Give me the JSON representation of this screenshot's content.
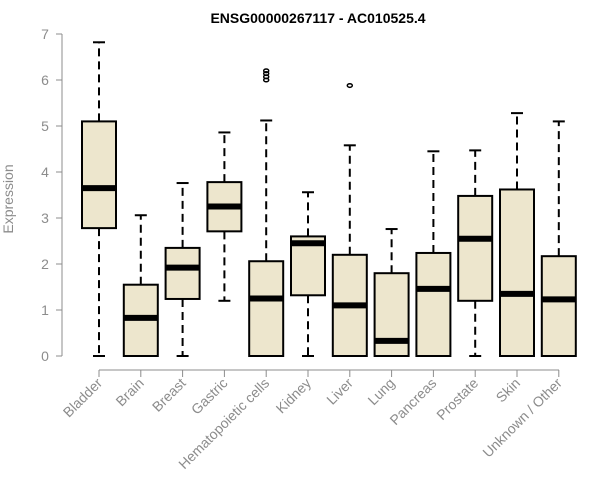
{
  "chart_data": {
    "type": "boxplot",
    "title": "ENSG00000267117 - AC010525.4",
    "ylabel": "Expression",
    "xlabel": "",
    "ylim": [
      0,
      7
    ],
    "yticks": [
      0,
      1,
      2,
      3,
      4,
      5,
      6,
      7
    ],
    "grid": false,
    "categories": [
      "Bladder",
      "Brain",
      "Breast",
      "Gastric",
      "Hematopoietic cells",
      "Kidney",
      "Liver",
      "Lung",
      "Pancreas",
      "Prostate",
      "Skin",
      "Unknown / Other"
    ],
    "boxes": [
      {
        "category": "Bladder",
        "whisker_low": 0,
        "q1": 2.78,
        "median": 3.65,
        "q3": 5.1,
        "whisker_high": 6.82,
        "outliers": []
      },
      {
        "category": "Brain",
        "whisker_low": 0,
        "q1": 0,
        "median": 0.83,
        "q3": 1.55,
        "whisker_high": 3.06,
        "outliers": []
      },
      {
        "category": "Breast",
        "whisker_low": 0,
        "q1": 1.24,
        "median": 1.92,
        "q3": 2.35,
        "whisker_high": 3.76,
        "outliers": []
      },
      {
        "category": "Gastric",
        "whisker_low": 1.2,
        "q1": 2.71,
        "median": 3.25,
        "q3": 3.78,
        "whisker_high": 4.86,
        "outliers": []
      },
      {
        "category": "Hematopoietic cells",
        "whisker_low": 0,
        "q1": 0,
        "median": 1.25,
        "q3": 2.06,
        "whisker_high": 5.12,
        "outliers": [
          6.0,
          6.07,
          6.14,
          6.2
        ]
      },
      {
        "category": "Kidney",
        "whisker_low": 0,
        "q1": 1.32,
        "median": 2.45,
        "q3": 2.6,
        "whisker_high": 3.56,
        "outliers": []
      },
      {
        "category": "Liver",
        "whisker_low": 0,
        "q1": 0,
        "median": 1.1,
        "q3": 2.2,
        "whisker_high": 4.58,
        "outliers": [
          5.88
        ]
      },
      {
        "category": "Lung",
        "whisker_low": 0,
        "q1": 0,
        "median": 0.33,
        "q3": 1.8,
        "whisker_high": 2.76,
        "outliers": []
      },
      {
        "category": "Pancreas",
        "whisker_low": 0,
        "q1": 0,
        "median": 1.46,
        "q3": 2.24,
        "whisker_high": 4.45,
        "outliers": []
      },
      {
        "category": "Prostate",
        "whisker_low": 0,
        "q1": 1.2,
        "median": 2.55,
        "q3": 3.48,
        "whisker_high": 4.47,
        "outliers": []
      },
      {
        "category": "Skin",
        "whisker_low": 0,
        "q1": 0,
        "median": 1.35,
        "q3": 3.62,
        "whisker_high": 5.28,
        "outliers": []
      },
      {
        "category": "Unknown / Other",
        "whisker_low": 0,
        "q1": 0,
        "median": 1.23,
        "q3": 2.17,
        "whisker_high": 5.1,
        "outliers": []
      }
    ],
    "box_fill": "#ede6cd",
    "box_stroke": "#000000",
    "axis_color": "#8c8c8c"
  }
}
